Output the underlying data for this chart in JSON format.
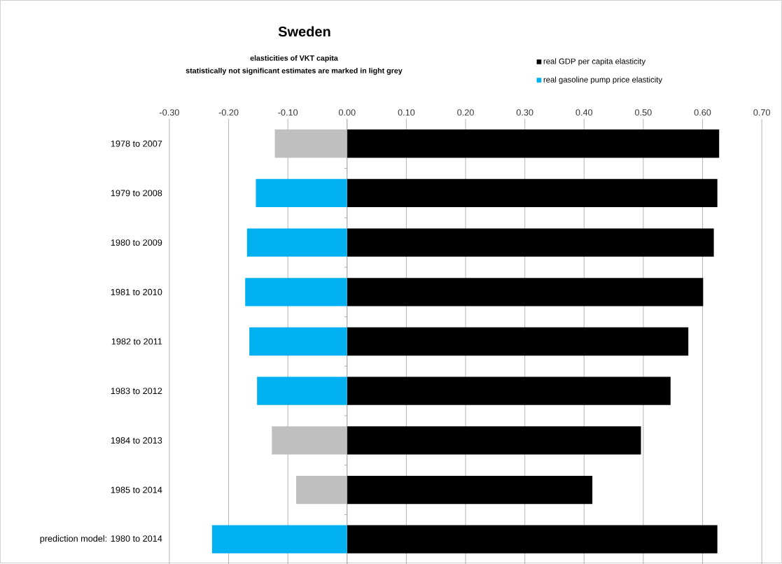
{
  "chart_data": {
    "type": "bar",
    "orientation": "horizontal",
    "title": "Sweden",
    "subtitle": "elasticities of VKT capita",
    "annotations": [
      "statistically  not significant  estimates are marked in  light grey"
    ],
    "categories": [
      "1978 to 2007",
      "1979 to 2008",
      "1980 to 2009",
      "1981 to 2010",
      "1982 to 2011",
      "1983 to 2012",
      "1984 to 2013",
      "1985 to 2014",
      "prediction model: 1980 to 2014"
    ],
    "series": [
      {
        "name": "real GDP per capita elasticity",
        "color": "#000000",
        "values": [
          0.628,
          0.625,
          0.619,
          0.601,
          0.576,
          0.546,
          0.496,
          0.414,
          0.625
        ]
      },
      {
        "name": "real gasoline pump price elasticity",
        "color": "#00b0f0",
        "colors": [
          "#bfbfbf",
          "#00b0f0",
          "#00b0f0",
          "#00b0f0",
          "#00b0f0",
          "#00b0f0",
          "#bfbfbf",
          "#bfbfbf",
          "#00b0f0"
        ],
        "values": [
          -0.122,
          -0.154,
          -0.169,
          -0.172,
          -0.165,
          -0.152,
          -0.127,
          -0.086,
          -0.228
        ]
      }
    ],
    "xlim": [
      -0.3,
      0.7
    ],
    "xticks": [
      {
        "value": -0.3,
        "label": "-0.30"
      },
      {
        "value": -0.2,
        "label": "-0.20"
      },
      {
        "value": -0.1,
        "label": "-0.10"
      },
      {
        "value": 0,
        "label": "0.00"
      },
      {
        "value": 0.1,
        "label": "0.10"
      },
      {
        "value": 0.2,
        "label": "0.20"
      },
      {
        "value": 0.3,
        "label": "0.30"
      },
      {
        "value": 0.4,
        "label": "0.40"
      },
      {
        "value": 0.5,
        "label": "0.50"
      },
      {
        "value": 0.6,
        "label": "0.60"
      },
      {
        "value": 0.7,
        "label": "0.70"
      }
    ],
    "grid": "x",
    "legend": "top right",
    "stacked": true
  }
}
